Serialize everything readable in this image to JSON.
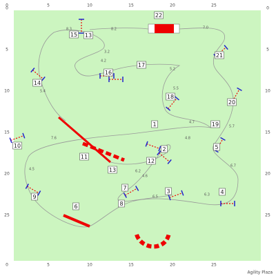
{
  "axes": {
    "xticks": [
      0,
      5,
      10,
      15,
      20,
      25
    ],
    "yticks": [
      0,
      5,
      10,
      15,
      20,
      25
    ]
  },
  "obstacles": [
    "1",
    "2",
    "3",
    "4",
    "5",
    "6",
    "7",
    "8",
    "9",
    "10",
    "11",
    "12",
    "13",
    "14",
    "15",
    "16",
    "17",
    "18",
    "19",
    "20",
    "21",
    "22",
    "13"
  ],
  "distances": [
    "8.3",
    "8.2",
    "7.0",
    "3.2",
    "4.2",
    "5.2",
    "5.5",
    "4.7",
    "5.7",
    "6.7",
    "6.3",
    "6.5",
    "7.6",
    "5.4",
    "4.6",
    "6.2",
    "4.5",
    "4.8"
  ],
  "footer": "Agility Plaza"
}
